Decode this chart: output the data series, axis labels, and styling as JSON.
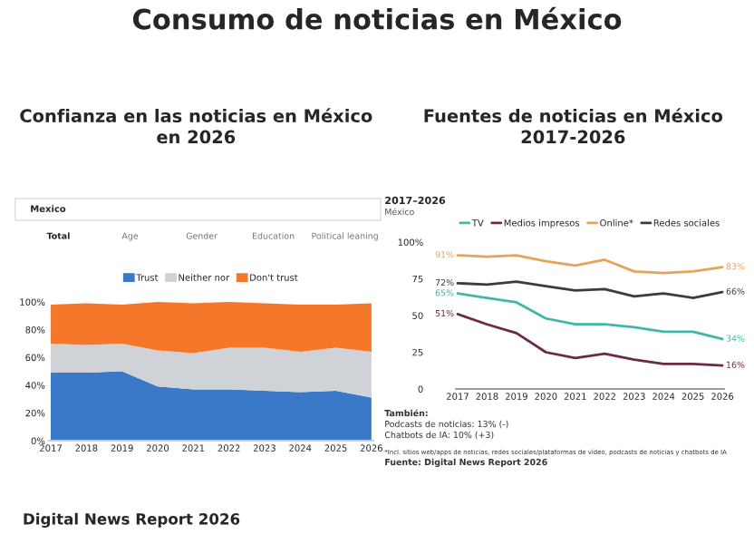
{
  "chart_data": [
    {
      "type": "other",
      "title": "Consumo de noticias en México",
      "annotations": [
        "Digital News Report 2026"
      ]
    },
    {
      "type": "area",
      "stacked": true,
      "title": "Confianza en las noticias en México\nen 2026",
      "categories": [
        "2017",
        "2018",
        "2019",
        "2020",
        "2021",
        "2022",
        "2023",
        "2024",
        "2025",
        "2026"
      ],
      "series": [
        {
          "name": "Trust",
          "color": "#3a78c8",
          "values": [
            49,
            49,
            50,
            39,
            37,
            37,
            36,
            35,
            36,
            31
          ]
        },
        {
          "name": "Neither nor",
          "color": "#cfd2d6",
          "values": [
            21,
            20,
            20,
            26,
            26,
            30,
            31,
            29,
            31,
            33
          ]
        },
        {
          "name": "Don't trust",
          "color": "#f5782a",
          "values": [
            28,
            30,
            28,
            35,
            36,
            33,
            32,
            34,
            31,
            35
          ]
        }
      ],
      "ylim": [
        0,
        100
      ],
      "yticks": [
        {
          "value": 0,
          "label": "0%"
        },
        {
          "value": 20,
          "label": "20%"
        },
        {
          "value": 40,
          "label": "40%"
        },
        {
          "value": 60,
          "label": "60%"
        },
        {
          "value": 80,
          "label": "80%"
        },
        {
          "value": 100,
          "label": "100%"
        }
      ],
      "legend": "top",
      "annotations": [
        "Mexico",
        "Total",
        "Age",
        "Gender",
        "Education",
        "Political leaning"
      ]
    },
    {
      "type": "line",
      "title": "Fuentes de noticias en México\n2017-2026",
      "subtitle": "2017–2026",
      "categories": [
        "2017",
        "2018",
        "2019",
        "2020",
        "2021",
        "2022",
        "2023",
        "2024",
        "2025",
        "2026"
      ],
      "series": [
        {
          "name": "TV",
          "color": "#3fb8a6",
          "values": [
            65,
            62,
            59,
            48,
            44,
            44,
            42,
            39,
            39,
            34
          ],
          "value_labels": [
            "65%",
            null,
            null,
            null,
            null,
            null,
            null,
            null,
            null,
            "34%"
          ]
        },
        {
          "name": "Medios impresos",
          "color": "#6b2a45",
          "values": [
            51,
            44,
            38,
            25,
            21,
            24,
            20,
            17,
            17,
            16
          ],
          "value_labels": [
            "51%",
            null,
            null,
            null,
            null,
            null,
            null,
            null,
            null,
            "16%"
          ]
        },
        {
          "name": "Online*",
          "color": "#e8a35a",
          "values": [
            91,
            90,
            91,
            87,
            84,
            88,
            80,
            79,
            80,
            83
          ],
          "value_labels": [
            "91%",
            null,
            null,
            null,
            null,
            null,
            null,
            null,
            null,
            "83%"
          ]
        },
        {
          "name": "Redes sociales",
          "color": "#3b3a48",
          "values": [
            72,
            71,
            73,
            70,
            67,
            68,
            63,
            65,
            62,
            66
          ],
          "value_labels": [
            "72%",
            null,
            null,
            null,
            null,
            null,
            null,
            null,
            null,
            "66%"
          ]
        }
      ],
      "ylim": [
        0,
        100
      ],
      "yticks": [
        0,
        25,
        50,
        75,
        {
          "value": 100,
          "label": "100%"
        }
      ],
      "legend": "top",
      "marker": "none",
      "line_style": "solid",
      "annotations": [
        "México",
        "También:",
        "Podcasts de noticias: 13% (-)",
        "Chatbots de IA: 10% (+3)",
        "*Incl. sitios web/apps de noticias, redes sociales/plataformas de vídeo, podcasts de noticias y chatbots de IA",
        "Fuente: Digital News Report 2026"
      ]
    }
  ]
}
